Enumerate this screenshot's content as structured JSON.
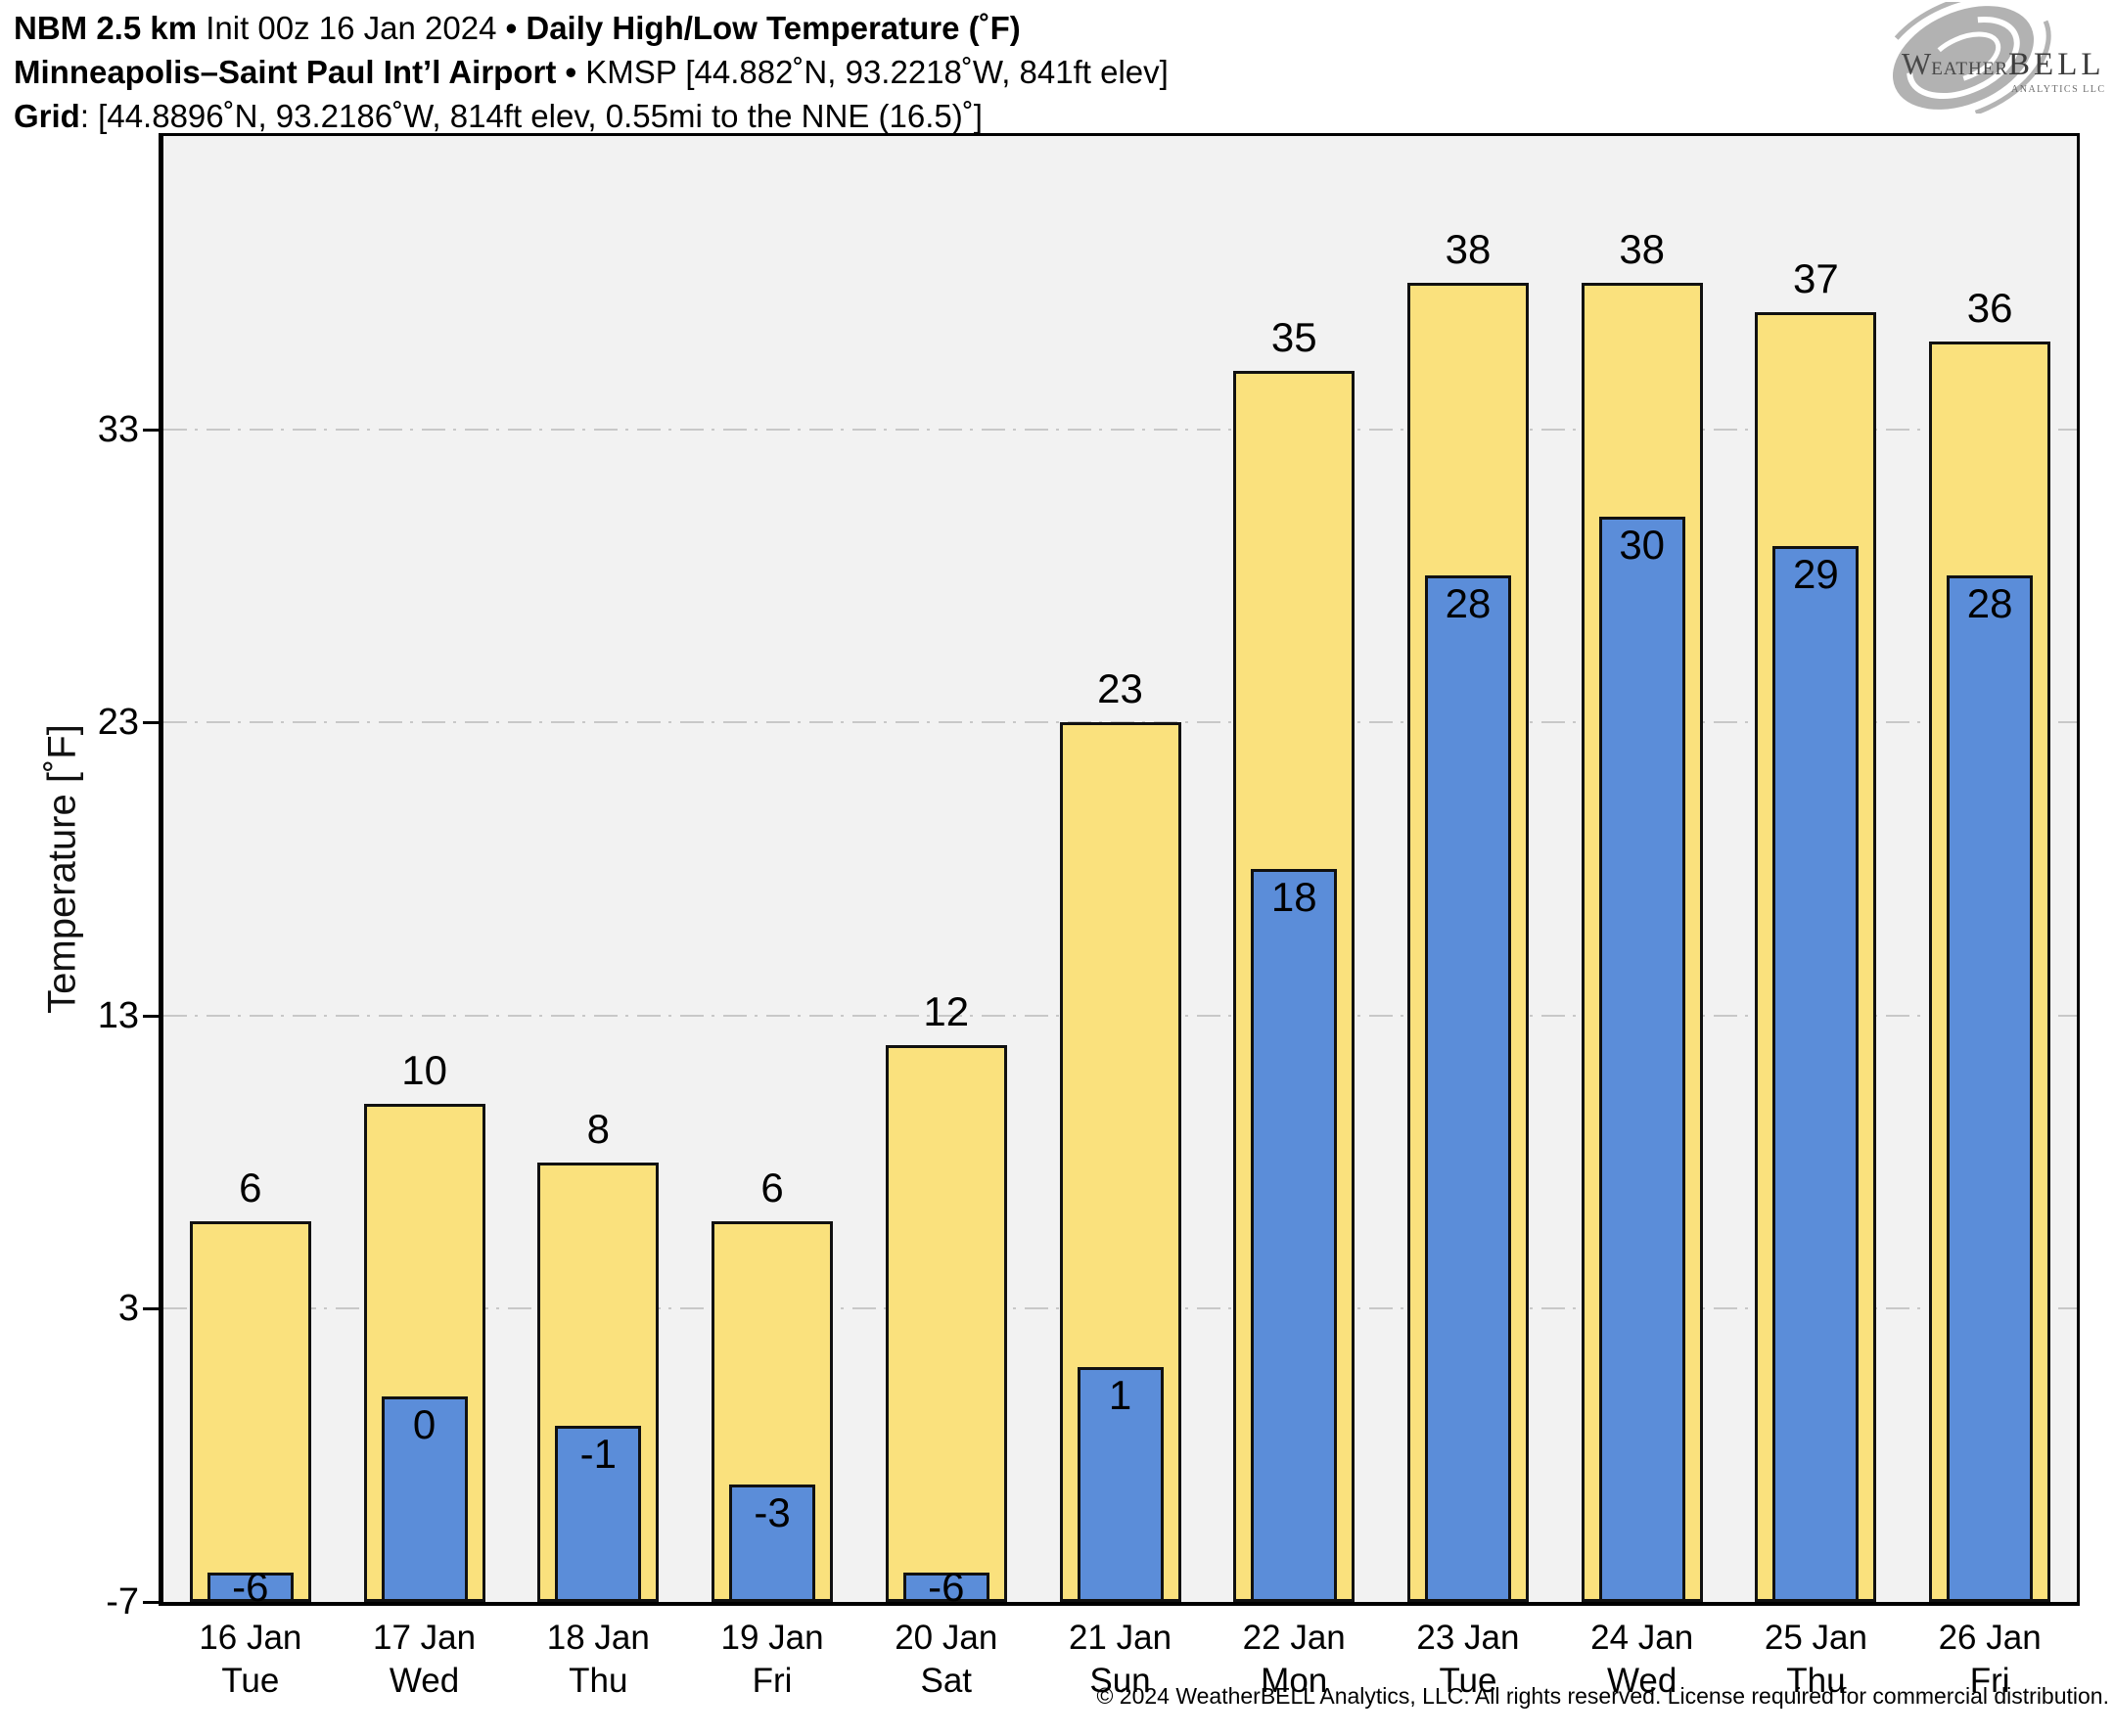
{
  "header": {
    "lines": [
      {
        "segments": [
          {
            "text": "NBM 2.5 km ",
            "bold": true
          },
          {
            "text": "Init 00z 16 Jan 2024 ",
            "bold": false
          },
          {
            "text": "• ",
            "bold": true
          },
          {
            "text": "Daily High/Low Temperature (˚F)",
            "bold": true
          }
        ]
      },
      {
        "segments": [
          {
            "text": "Minneapolis–Saint Paul Int’l Airport ",
            "bold": true
          },
          {
            "text": "• ",
            "bold": true
          },
          {
            "text": "KMSP [44.882˚N, 93.2218˚W, 841ft elev]",
            "bold": false
          }
        ]
      },
      {
        "segments": [
          {
            "text": "Grid",
            "bold": true
          },
          {
            "text": ": [44.8896˚N, 93.2186˚W, 814ft elev, 0.55mi to the NNE (16.5)˚]",
            "bold": false
          }
        ]
      }
    ]
  },
  "logo": {
    "w": "W",
    "eather": "EATHER",
    "bell": "BELL",
    "subtitle": "ANALYTICS LLC"
  },
  "footer": {
    "copyright": "© 2024 WeatherBELL Analytics, LLC. All rights reserved. License required for commercial distribution."
  },
  "chart_data": {
    "type": "bar",
    "title": "Daily High/Low Temperature (˚F)",
    "categories": [
      {
        "date": "16 Jan",
        "day": "Tue"
      },
      {
        "date": "17 Jan",
        "day": "Wed"
      },
      {
        "date": "18 Jan",
        "day": "Thu"
      },
      {
        "date": "19 Jan",
        "day": "Fri"
      },
      {
        "date": "20 Jan",
        "day": "Sat"
      },
      {
        "date": "21 Jan",
        "day": "Sun"
      },
      {
        "date": "22 Jan",
        "day": "Mon"
      },
      {
        "date": "23 Jan",
        "day": "Tue"
      },
      {
        "date": "24 Jan",
        "day": "Wed"
      },
      {
        "date": "25 Jan",
        "day": "Thu"
      },
      {
        "date": "26 Jan",
        "day": "Fri"
      }
    ],
    "series": [
      {
        "name": "High",
        "color": "#fae17d",
        "values": [
          6,
          10,
          8,
          6,
          12,
          23,
          35,
          38,
          38,
          37,
          36
        ]
      },
      {
        "name": "Low",
        "color": "#5b8dd9",
        "values": [
          -6,
          0,
          -1,
          -3,
          -6,
          1,
          18,
          28,
          30,
          29,
          28
        ]
      }
    ],
    "xlabel": "",
    "ylabel": "Temperature [˚F]",
    "ylim": [
      -7,
      43
    ],
    "yticks": [
      33,
      23,
      13,
      3,
      -7
    ],
    "grid": "horizontal dash-dot gridlines at labeled yticks",
    "legend": "none",
    "plot_background": "#f2f2f2",
    "gridline_color": "#c8c8c8",
    "bar_outline_color": "#111111"
  }
}
